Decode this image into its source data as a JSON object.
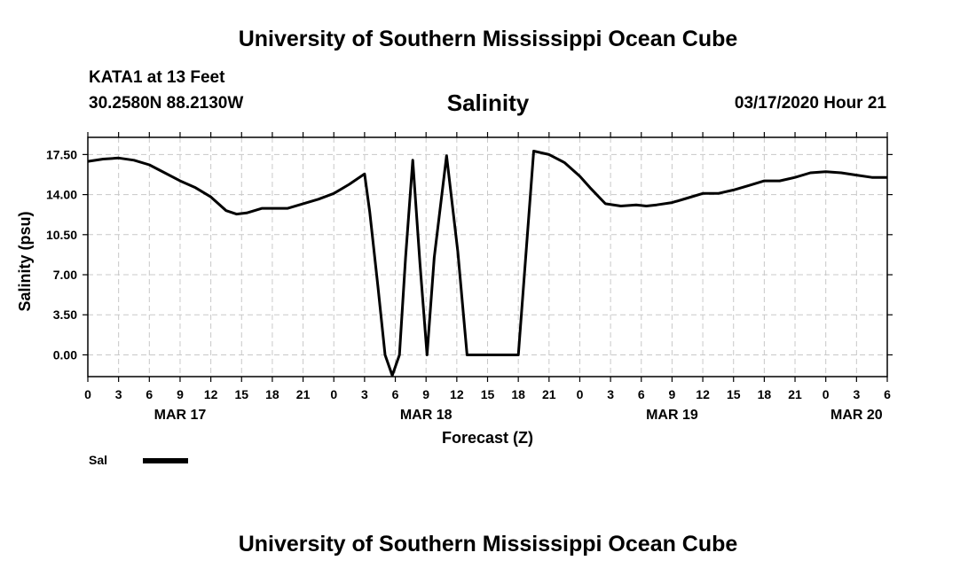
{
  "header": {
    "title": "University of Southern Mississippi Ocean Cube",
    "station": "KATA1 at 13 Feet",
    "coordinates": "30.2580N 88.2130W",
    "datetime": "03/17/2020 Hour 21"
  },
  "footer": {
    "title": "University of Southern Mississippi Ocean Cube"
  },
  "chart_data": {
    "type": "line",
    "title": "Salinity",
    "xlabel": "Forecast (Z)",
    "ylabel": "Salinity (psu)",
    "xlim": [
      0,
      78
    ],
    "ylim": [
      -1.9,
      19.0
    ],
    "yticks": [
      0.0,
      3.5,
      7.0,
      10.5,
      14.0,
      17.5
    ],
    "ytick_labels": [
      "0.00",
      "3.50",
      "7.00",
      "10.50",
      "14.00",
      "17.50"
    ],
    "xticks": [
      0,
      3,
      6,
      9,
      12,
      15,
      18,
      21,
      24,
      27,
      30,
      33,
      36,
      39,
      42,
      45,
      48,
      51,
      54,
      57,
      60,
      63,
      66,
      69,
      72,
      75,
      78
    ],
    "xtick_labels": [
      "0",
      "3",
      "6",
      "9",
      "12",
      "15",
      "18",
      "21",
      "0",
      "3",
      "6",
      "9",
      "12",
      "15",
      "18",
      "21",
      "0",
      "3",
      "6",
      "9",
      "12",
      "15",
      "18",
      "21",
      "0",
      "3",
      "6"
    ],
    "date_labels": [
      {
        "x": 9,
        "label": "MAR 17"
      },
      {
        "x": 33,
        "label": "MAR 18"
      },
      {
        "x": 57,
        "label": "MAR 19"
      },
      {
        "x": 75,
        "label": "MAR 20"
      }
    ],
    "grid": true,
    "legend": "bottom-left",
    "series": [
      {
        "name": "Sal",
        "color": "#000000",
        "x": [
          0,
          1.5,
          3,
          4.5,
          6,
          7.5,
          9,
          10.5,
          12,
          13.5,
          14.5,
          15.5,
          17,
          18,
          19.5,
          21,
          22.5,
          24,
          25.5,
          27,
          27.5,
          28.3,
          29,
          29.7,
          30.4,
          31,
          31.7,
          32.4,
          33.1,
          33.8,
          35,
          36.1,
          37,
          38.3,
          40.6,
          42,
          43.5,
          45,
          46.5,
          48,
          49,
          50.5,
          52,
          53.5,
          54.5,
          55.5,
          57,
          58.5,
          60,
          61.5,
          63,
          64.5,
          66,
          67.5,
          69,
          70.5,
          72,
          73.5,
          75,
          76.5,
          78
        ],
        "y": [
          16.9,
          17.1,
          17.2,
          17.0,
          16.6,
          15.9,
          15.2,
          14.6,
          13.8,
          12.6,
          12.3,
          12.4,
          12.8,
          12.8,
          12.8,
          13.2,
          13.6,
          14.1,
          14.9,
          15.8,
          12.5,
          6.0,
          0.0,
          -1.8,
          0.0,
          8.5,
          17.0,
          8.0,
          0.0,
          8.5,
          17.4,
          9.0,
          0.0,
          0.0,
          0.0,
          0.0,
          17.8,
          17.5,
          16.8,
          15.6,
          14.6,
          13.2,
          13.0,
          13.1,
          13.0,
          13.1,
          13.3,
          13.7,
          14.1,
          14.1,
          14.4,
          14.8,
          15.2,
          15.2,
          15.5,
          15.9,
          16.0,
          15.9,
          15.7,
          15.5,
          15.5
        ]
      }
    ]
  }
}
